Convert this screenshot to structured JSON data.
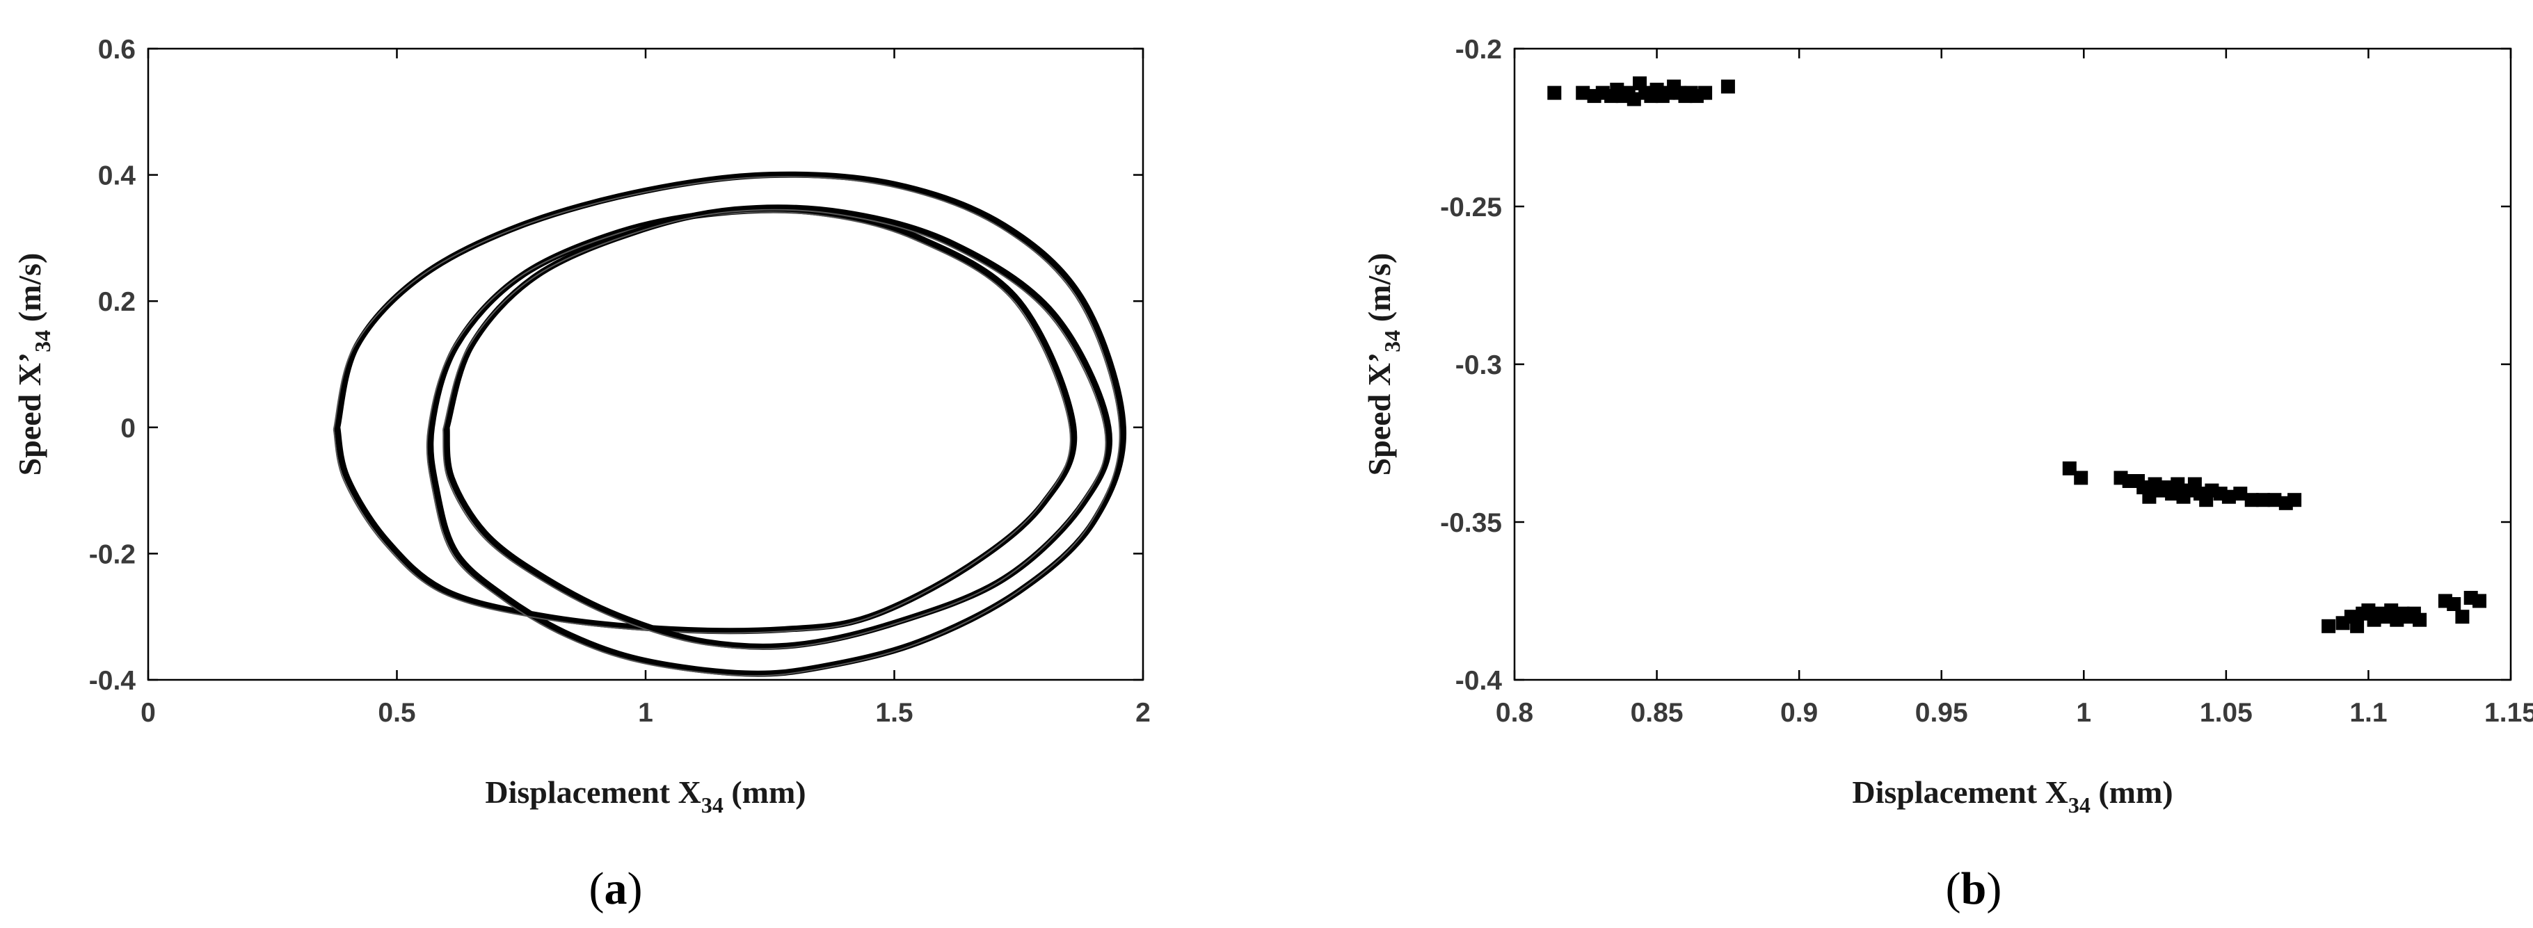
{
  "chart_data": [
    {
      "type": "line",
      "panel_label": {
        "open": "(",
        "letter": "a",
        "close": ")"
      },
      "xlabel": {
        "main": "Displacement X",
        "sub": "34",
        "unit": " (mm)"
      },
      "ylabel": {
        "main": "Speed X’",
        "sub": "34",
        "unit": " (m/s)"
      },
      "xlim": [
        0,
        2
      ],
      "ylim": [
        -0.4,
        0.6
      ],
      "x_ticks": [
        "0",
        "0.5",
        "1",
        "1.5",
        "2"
      ],
      "y_ticks": [
        "-0.4",
        "-0.2",
        "0",
        "0.2",
        "0.4",
        "0.6"
      ],
      "grid": false,
      "series": [
        {
          "values": [
            [
              0.38,
              0.0
            ],
            [
              0.42,
              0.13
            ],
            [
              0.55,
              0.24
            ],
            [
              0.75,
              0.32
            ],
            [
              1.0,
              0.375
            ],
            [
              1.25,
              0.4
            ],
            [
              1.5,
              0.385
            ],
            [
              1.72,
              0.32
            ],
            [
              1.88,
              0.2
            ],
            [
              1.96,
              0.0
            ],
            [
              1.9,
              -0.15
            ],
            [
              1.75,
              -0.26
            ],
            [
              1.55,
              -0.34
            ],
            [
              1.35,
              -0.38
            ],
            [
              1.2,
              -0.39
            ],
            [
              1.0,
              -0.37
            ],
            [
              0.85,
              -0.33
            ],
            [
              0.72,
              -0.27
            ],
            [
              0.62,
              -0.2
            ],
            [
              0.58,
              -0.1
            ],
            [
              0.57,
              0.0
            ],
            [
              0.62,
              0.13
            ],
            [
              0.75,
              0.24
            ],
            [
              0.95,
              0.31
            ],
            [
              1.15,
              0.34
            ],
            [
              1.35,
              0.34
            ],
            [
              1.55,
              0.3
            ],
            [
              1.75,
              0.2
            ],
            [
              1.86,
              0.0
            ],
            [
              1.8,
              -0.12
            ],
            [
              1.65,
              -0.22
            ],
            [
              1.45,
              -0.3
            ],
            [
              1.28,
              -0.32
            ],
            [
              1.05,
              -0.32
            ],
            [
              0.8,
              -0.3
            ],
            [
              0.6,
              -0.26
            ],
            [
              0.48,
              -0.18
            ],
            [
              0.4,
              -0.08
            ],
            [
              0.38,
              0.0
            ]
          ]
        },
        {
          "values": [
            [
              0.6,
              0.0
            ],
            [
              0.65,
              0.13
            ],
            [
              0.78,
              0.24
            ],
            [
              0.98,
              0.31
            ],
            [
              1.18,
              0.345
            ],
            [
              1.4,
              0.34
            ],
            [
              1.62,
              0.29
            ],
            [
              1.82,
              0.18
            ],
            [
              1.93,
              0.0
            ],
            [
              1.88,
              -0.12
            ],
            [
              1.72,
              -0.24
            ],
            [
              1.5,
              -0.31
            ],
            [
              1.3,
              -0.345
            ],
            [
              1.12,
              -0.34
            ],
            [
              0.95,
              -0.3
            ],
            [
              0.8,
              -0.24
            ],
            [
              0.68,
              -0.17
            ],
            [
              0.61,
              -0.08
            ],
            [
              0.6,
              0.0
            ]
          ]
        }
      ]
    },
    {
      "type": "scatter",
      "panel_label": {
        "open": "(",
        "letter": "b",
        "close": ")"
      },
      "xlabel": {
        "main": "Displacement X",
        "sub": "34",
        "unit": " (mm)"
      },
      "ylabel": {
        "main": "Speed X’",
        "sub": "34",
        "unit": " (m/s)"
      },
      "xlim": [
        0.8,
        1.15
      ],
      "ylim": [
        -0.4,
        -0.2
      ],
      "x_ticks": [
        "0.8",
        "0.85",
        "0.9",
        "0.95",
        "1",
        "1.05",
        "1.1",
        "1.15"
      ],
      "y_ticks": [
        "-0.4",
        "-0.35",
        "-0.3",
        "-0.25",
        "-0.2"
      ],
      "grid": false,
      "series": [
        {
          "values": [
            [
              0.814,
              -0.214
            ],
            [
              0.824,
              -0.214
            ],
            [
              0.828,
              -0.215
            ],
            [
              0.831,
              -0.214
            ],
            [
              0.834,
              -0.215
            ],
            [
              0.836,
              -0.213
            ],
            [
              0.838,
              -0.215
            ],
            [
              0.84,
              -0.214
            ],
            [
              0.842,
              -0.216
            ],
            [
              0.844,
              -0.211
            ],
            [
              0.846,
              -0.214
            ],
            [
              0.848,
              -0.215
            ],
            [
              0.85,
              -0.213
            ],
            [
              0.852,
              -0.215
            ],
            [
              0.854,
              -0.214
            ],
            [
              0.856,
              -0.212
            ],
            [
              0.858,
              -0.214
            ],
            [
              0.86,
              -0.215
            ],
            [
              0.862,
              -0.214
            ],
            [
              0.864,
              -0.215
            ],
            [
              0.867,
              -0.214
            ],
            [
              0.875,
              -0.212
            ],
            [
              0.995,
              -0.333
            ],
            [
              0.999,
              -0.336
            ],
            [
              1.013,
              -0.336
            ],
            [
              1.016,
              -0.337
            ],
            [
              1.019,
              -0.337
            ],
            [
              1.021,
              -0.339
            ],
            [
              1.023,
              -0.342
            ],
            [
              1.025,
              -0.338
            ],
            [
              1.027,
              -0.34
            ],
            [
              1.029,
              -0.339
            ],
            [
              1.031,
              -0.341
            ],
            [
              1.033,
              -0.338
            ],
            [
              1.035,
              -0.342
            ],
            [
              1.037,
              -0.34
            ],
            [
              1.039,
              -0.338
            ],
            [
              1.041,
              -0.341
            ],
            [
              1.043,
              -0.343
            ],
            [
              1.045,
              -0.34
            ],
            [
              1.048,
              -0.341
            ],
            [
              1.051,
              -0.342
            ],
            [
              1.055,
              -0.341
            ],
            [
              1.059,
              -0.343
            ],
            [
              1.063,
              -0.343
            ],
            [
              1.067,
              -0.343
            ],
            [
              1.071,
              -0.344
            ],
            [
              1.074,
              -0.343
            ],
            [
              1.086,
              -0.383
            ],
            [
              1.091,
              -0.382
            ],
            [
              1.094,
              -0.38
            ],
            [
              1.096,
              -0.383
            ],
            [
              1.098,
              -0.379
            ],
            [
              1.1,
              -0.378
            ],
            [
              1.102,
              -0.381
            ],
            [
              1.104,
              -0.379
            ],
            [
              1.106,
              -0.38
            ],
            [
              1.108,
              -0.378
            ],
            [
              1.11,
              -0.381
            ],
            [
              1.112,
              -0.379
            ],
            [
              1.114,
              -0.38
            ],
            [
              1.116,
              -0.379
            ],
            [
              1.118,
              -0.381
            ],
            [
              1.127,
              -0.375
            ],
            [
              1.13,
              -0.376
            ],
            [
              1.133,
              -0.38
            ],
            [
              1.136,
              -0.374
            ],
            [
              1.139,
              -0.375
            ]
          ]
        }
      ]
    }
  ]
}
